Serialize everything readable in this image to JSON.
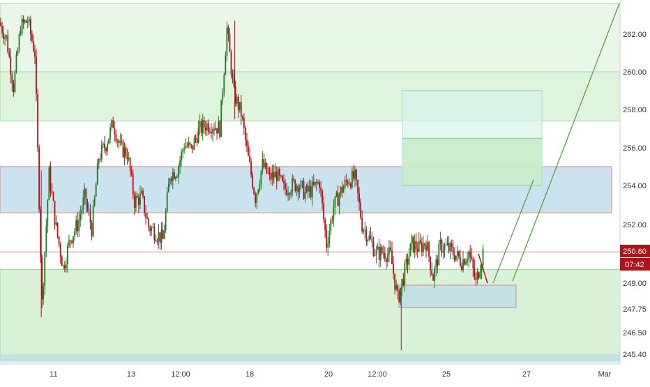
{
  "colors": {
    "up": "#1e7b1e",
    "down": "#b0121a",
    "background": "#ffffff",
    "axis_text": "#333333",
    "zone_green": "#cdeecb",
    "zone_blue": "#b9d9ea",
    "price_label_bg": "#b0121a"
  },
  "chart_data": {
    "type": "candlestick",
    "title": "",
    "xlabel": "",
    "ylabel": "",
    "grid": false,
    "y_axis_position": "right",
    "ylim": [
      244.9,
      263.6
    ],
    "x_ticks": [
      "11",
      "13",
      "12:00",
      "18",
      "20",
      "12:00",
      "25",
      "27",
      "Mar"
    ],
    "y_ticks": [
      "262.00",
      "260.00",
      "258.00",
      "256.00",
      "254.00",
      "252.00",
      "249.00",
      "247.75",
      "246.50",
      "245.40"
    ],
    "last_price": "250.60",
    "countdown": "07:42",
    "zones": [
      {
        "kind": "support",
        "from": 245.1,
        "to": 249.7,
        "color": "green"
      },
      {
        "kind": "resistance-band",
        "from": 257.4,
        "to": 260.0,
        "color": "green"
      },
      {
        "kind": "resistance-band",
        "from": 260.0,
        "to": 263.6,
        "color": "green"
      },
      {
        "kind": "supply",
        "from": 252.6,
        "to": 255.0,
        "color": "blue"
      },
      {
        "kind": "demand",
        "from": 247.8,
        "to": 248.9,
        "color": "blue"
      }
    ],
    "targets": [
      254.0,
      256.5,
      259.0
    ],
    "price_path": [
      [
        0,
        262.6
      ],
      [
        1,
        261.8
      ],
      [
        2,
        259.2
      ],
      [
        3,
        262.4
      ],
      [
        4,
        262.7
      ],
      [
        5,
        261.0
      ],
      [
        6,
        248.0
      ],
      [
        7,
        254.6
      ],
      [
        8,
        251.8
      ],
      [
        9,
        249.8
      ],
      [
        10,
        251.3
      ],
      [
        11,
        252.0
      ],
      [
        12,
        253.4
      ],
      [
        13,
        251.8
      ],
      [
        14,
        255.5
      ],
      [
        15,
        256.2
      ],
      [
        16,
        257.3
      ],
      [
        17,
        256.0
      ],
      [
        18,
        255.7
      ],
      [
        19,
        253.2
      ],
      [
        20,
        253.4
      ],
      [
        21,
        251.9
      ],
      [
        22,
        251.6
      ],
      [
        23,
        251.2
      ],
      [
        24,
        254.6
      ],
      [
        25,
        254.8
      ],
      [
        26,
        256.2
      ],
      [
        27,
        255.9
      ],
      [
        28,
        256.9
      ],
      [
        29,
        257.2
      ],
      [
        30,
        257.2
      ],
      [
        31,
        257.0
      ],
      [
        32,
        262.3
      ],
      [
        33,
        258.8
      ],
      [
        34,
        257.8
      ],
      [
        35,
        255.4
      ],
      [
        36,
        253.4
      ],
      [
        37,
        255.1
      ],
      [
        38,
        254.4
      ],
      [
        39,
        254.6
      ],
      [
        40,
        253.8
      ],
      [
        41,
        254.0
      ],
      [
        42,
        254.1
      ],
      [
        43,
        253.6
      ],
      [
        44,
        253.8
      ],
      [
        45,
        254.2
      ],
      [
        46,
        251.0
      ],
      [
        47,
        252.9
      ],
      [
        48,
        253.7
      ],
      [
        49,
        254.3
      ],
      [
        50,
        254.4
      ],
      [
        51,
        252.0
      ],
      [
        52,
        251.3
      ],
      [
        53,
        250.5
      ],
      [
        54,
        250.6
      ],
      [
        55,
        250.4
      ],
      [
        56,
        248.2
      ],
      [
        57,
        249.6
      ],
      [
        58,
        251.0
      ],
      [
        59,
        250.8
      ],
      [
        60,
        251.1
      ],
      [
        61,
        249.3
      ],
      [
        62,
        250.9
      ],
      [
        63,
        250.8
      ],
      [
        64,
        250.5
      ],
      [
        65,
        250.1
      ],
      [
        66,
        250.6
      ],
      [
        67,
        249.0
      ],
      [
        68,
        250.6
      ]
    ],
    "projection": [
      {
        "from": [
          68,
          249.0
        ],
        "to": [
          75,
          254.3
        ]
      },
      {
        "from": [
          70,
          249.1
        ],
        "to": [
          87,
          263.6
        ]
      }
    ]
  }
}
